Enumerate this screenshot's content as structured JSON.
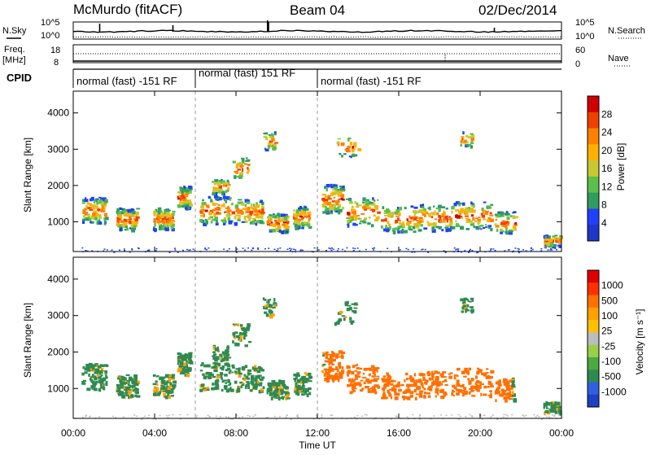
{
  "header": {
    "station": "McMurdo (fitACF)",
    "beam": "Beam 04",
    "date": "02/Dec/2014"
  },
  "labels": {
    "nsky": "N.Sky",
    "freq_line1": "Freq.",
    "freq_line2": "[MHz]",
    "cpid": "CPID",
    "nsearch": "N.Search",
    "nave": "Nave"
  },
  "colors": {
    "power_scale": [
      "#2036c8",
      "#2040ff",
      "#2f9c60",
      "#5bbf4a",
      "#c8c832",
      "#ffb000",
      "#ff8000",
      "#f04000",
      "#d00000"
    ],
    "velocity_scale": [
      "#1f40c0",
      "#3060e0",
      "#2f8a50",
      "#4ca840",
      "#9ad048",
      "#bdbdbd",
      "#ffc000",
      "#ffa000",
      "#ff7000",
      "#ff3000",
      "#e00000"
    ]
  },
  "chart_data": [
    {
      "type": "line",
      "name": "noise-panel",
      "left_ticks": [
        "10^5",
        "10^0"
      ],
      "right_ticks": [
        "10^5",
        "10^0"
      ],
      "series": [
        {
          "name": "N.Sky"
        },
        {
          "name": "N.Search"
        }
      ]
    },
    {
      "type": "line",
      "name": "freq-panel",
      "left_ticks": [
        "18",
        "8"
      ],
      "right_ticks": [
        "60",
        "0"
      ],
      "series": [
        {
          "name": "Freq."
        },
        {
          "name": "Nave"
        }
      ]
    },
    {
      "type": "table",
      "name": "cpid-panel",
      "segments": [
        {
          "label": "normal (fast) -151 RF",
          "start_hour": 0,
          "end_hour": 6
        },
        {
          "label": "normal (fast) 151 RF",
          "start_hour": 6,
          "end_hour": 12
        },
        {
          "label": "normal (fast) -151 RF",
          "start_hour": 12,
          "end_hour": 24
        }
      ]
    },
    {
      "type": "heatmap",
      "name": "power-panel",
      "ylabel": "Slant Range [km]",
      "yticks": [
        "4000",
        "3000",
        "2000",
        "1000"
      ],
      "ylim": [
        180,
        4600
      ],
      "colorbar_label": "Power [dB]",
      "colorbar_ticks": [
        "28",
        "24",
        "20",
        "16",
        "12",
        "8",
        "4"
      ],
      "colorbar_range": [
        0,
        32
      ]
    },
    {
      "type": "heatmap",
      "name": "velocity-panel",
      "ylabel": "Slant Range [km]",
      "yticks": [
        "4000",
        "3000",
        "2000",
        "1000"
      ],
      "ylim": [
        180,
        4600
      ],
      "colorbar_label": "Velocity [m s⁻¹]",
      "colorbar_ticks": [
        "1000",
        "500",
        "100",
        "25",
        "-25",
        "-100",
        "-500",
        "-1000"
      ]
    }
  ],
  "xaxis": {
    "label": "Time UT",
    "ticks": [
      "00:00",
      "04:00",
      "08:00",
      "12:00",
      "16:00",
      "20:00",
      "00:00"
    ]
  }
}
